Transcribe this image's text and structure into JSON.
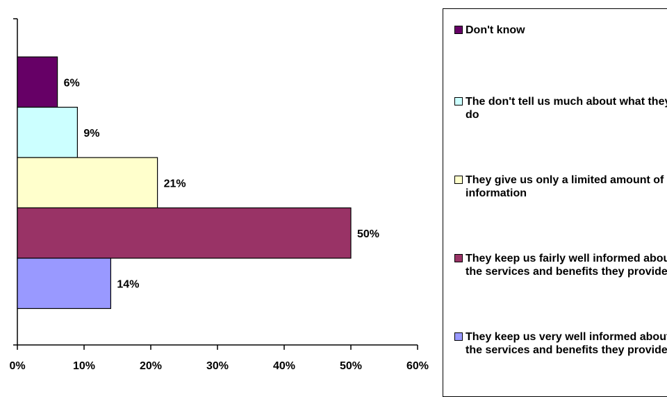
{
  "chart_data": {
    "type": "bar",
    "orientation": "horizontal",
    "xlim": [
      0,
      60
    ],
    "x_ticks": [
      "0%",
      "10%",
      "20%",
      "30%",
      "40%",
      "50%",
      "60%"
    ],
    "grid": false,
    "legend_position": "right",
    "series": [
      {
        "name": "They keep us very well informed about the services and benefits they provide",
        "value": 14,
        "label": "14%",
        "color": "#9999ff"
      },
      {
        "name": "They keep us fairly well informed about the services and benefits they provide",
        "value": 50,
        "label": "50%",
        "color": "#993366"
      },
      {
        "name": "They give us only a limited amount of information",
        "value": 21,
        "label": "21%",
        "color": "#ffffcc"
      },
      {
        "name": "The don't tell us much about what they do",
        "value": 9,
        "label": "9%",
        "color": "#ccffff"
      },
      {
        "name": "Don't know",
        "value": 6,
        "label": "6%",
        "color": "#660066"
      }
    ],
    "legend": [
      {
        "label": "Don't know",
        "color": "#660066"
      },
      {
        "label": "The don't tell us much about what they do",
        "color": "#ccffff"
      },
      {
        "label": "They give us only a limited amount of information",
        "color": "#ffffcc"
      },
      {
        "label": "They keep us fairly well informed about the services and benefits they provide",
        "color": "#993366"
      },
      {
        "label": "They keep us very well informed about the services and benefits they provide",
        "color": "#9999ff"
      }
    ]
  }
}
